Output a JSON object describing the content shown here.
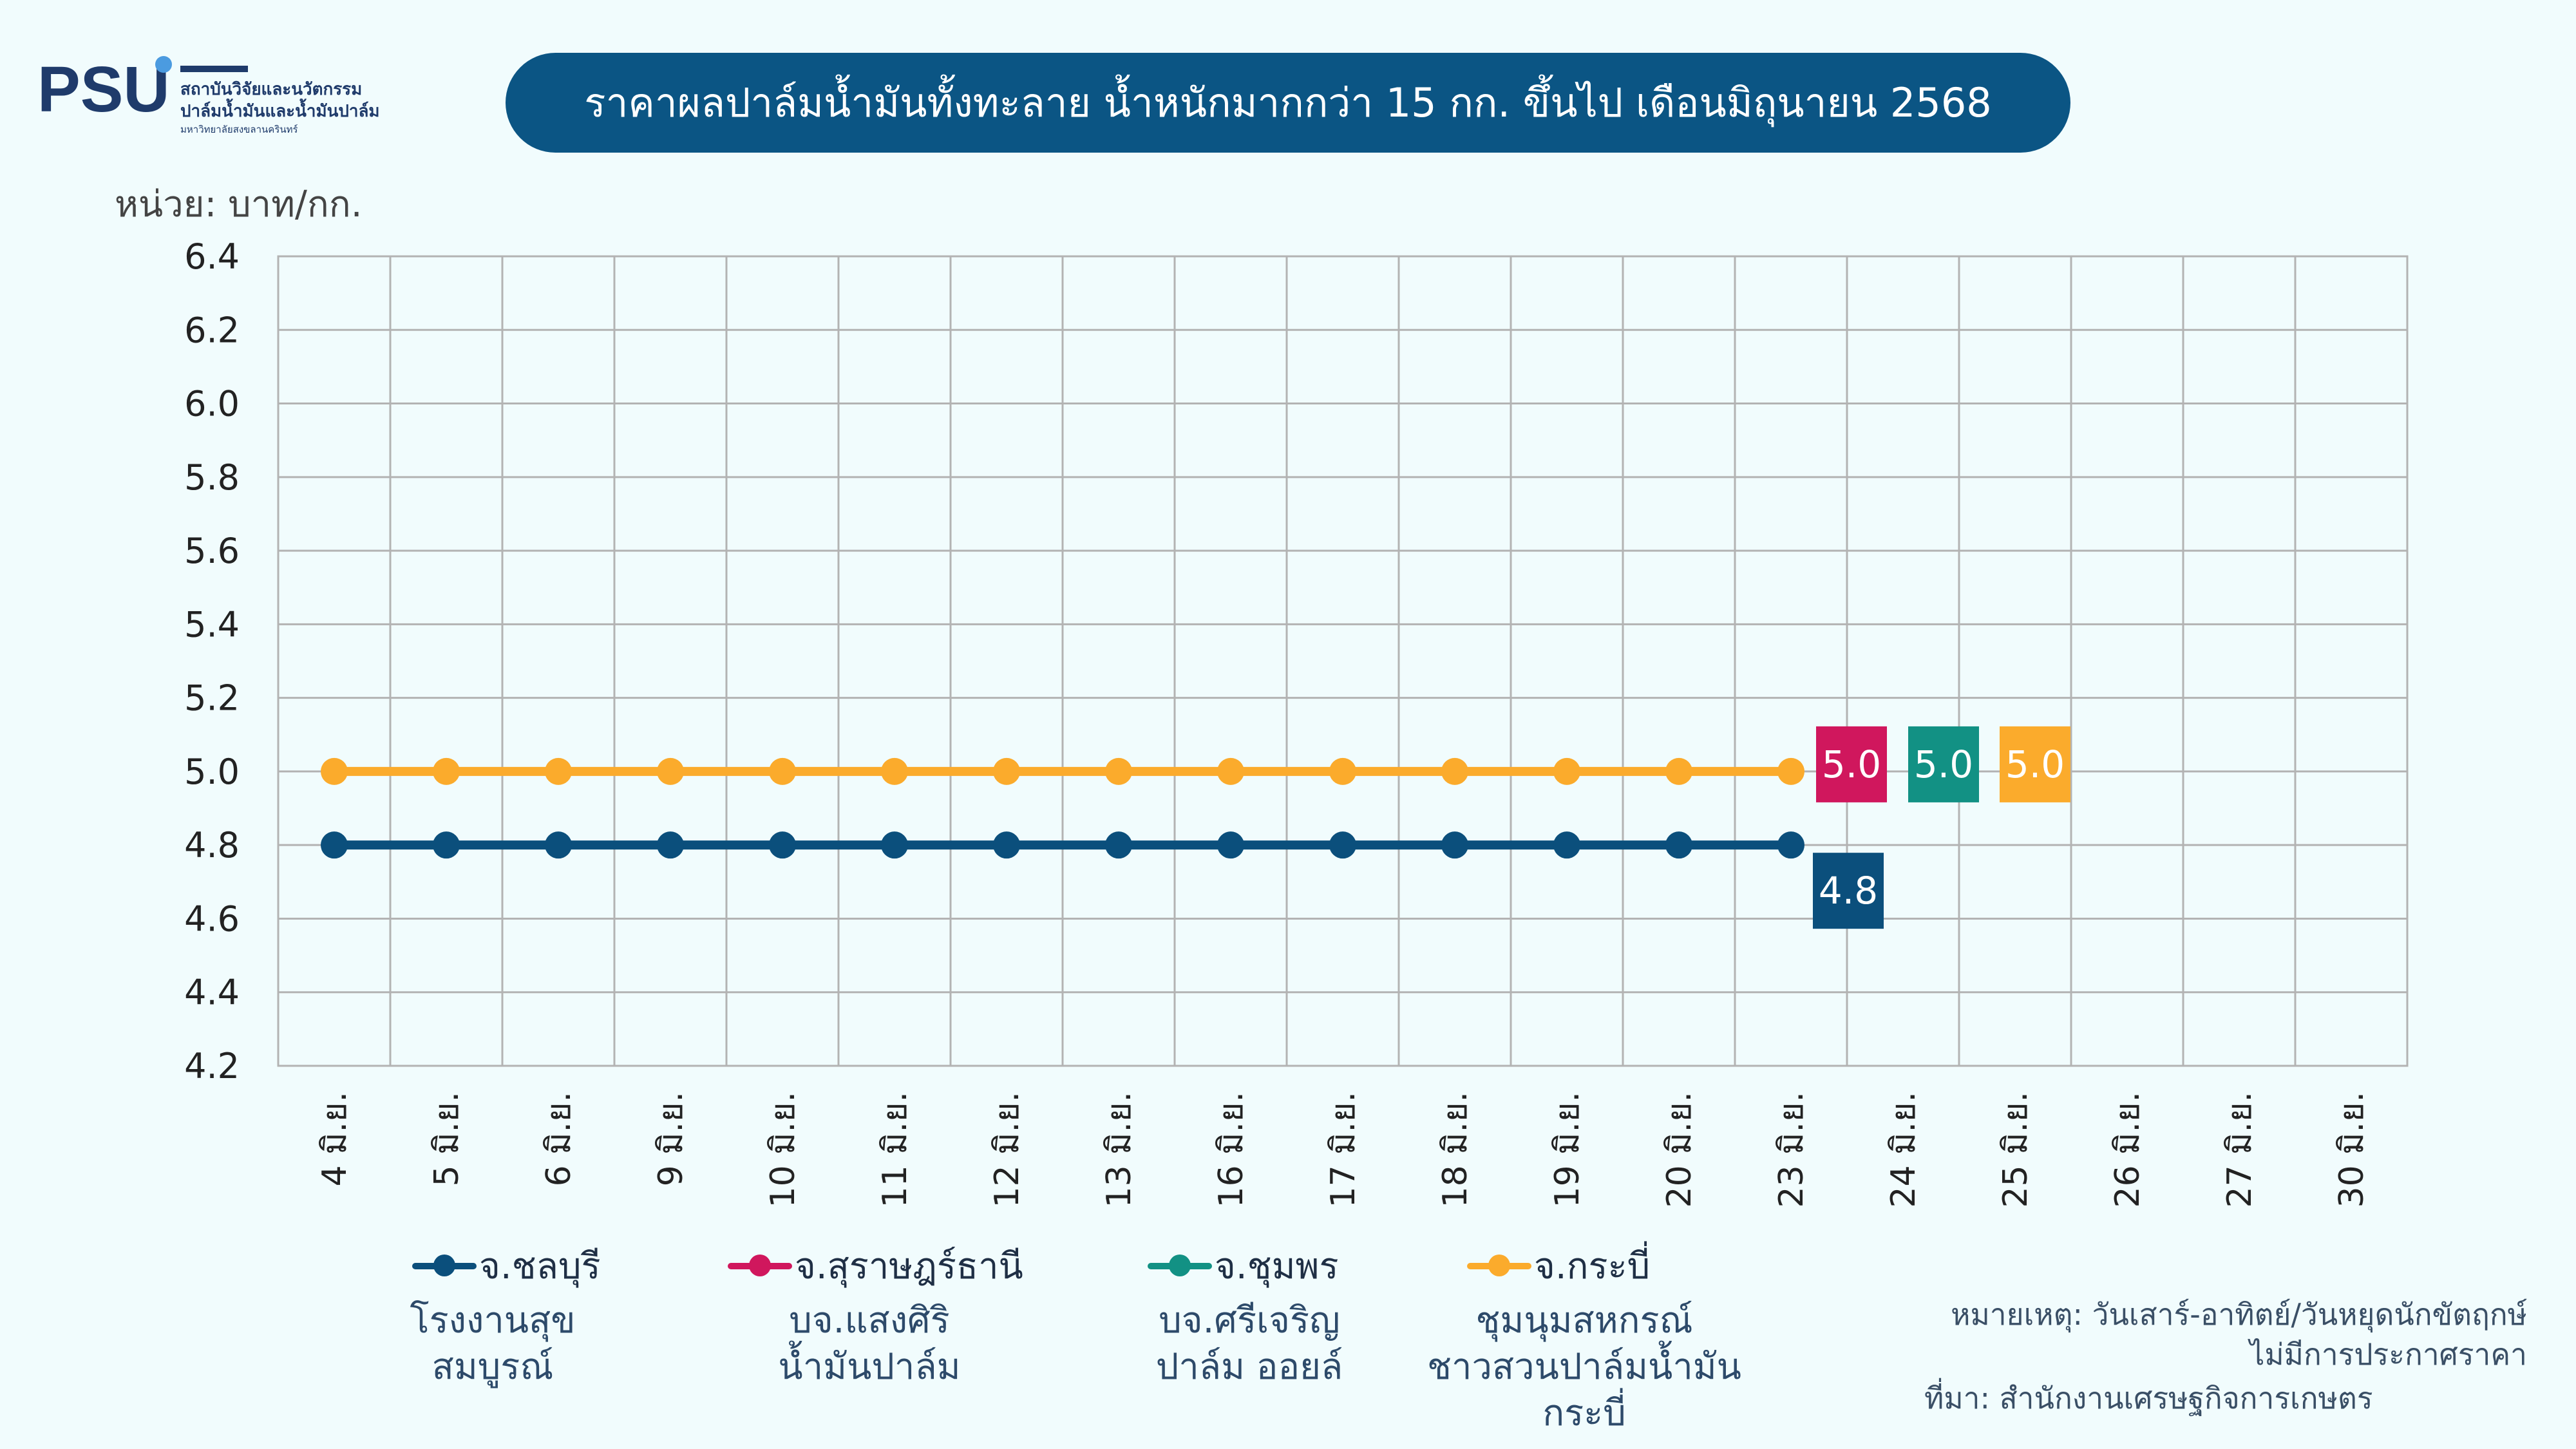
{
  "logo": {
    "mark": "PSU",
    "line1": "สถาบันวิจัยและนวัตกรรม",
    "line2": "ปาล์มน้ำมันและน้ำมันปาล์ม",
    "line3": "มหาวิทยาลัยสงขลานครินทร์"
  },
  "title": "ราคาผลปาล์มน้ำมันทั้งทะลาย น้ำหนักมากกว่า 15 กก. ขึ้นไป เดือนมิถุนายน 2568",
  "unit": "หน่วย: บาท/กก.",
  "chart_data": {
    "type": "line",
    "categories": [
      "4 มิ.ย.",
      "5 มิ.ย.",
      "6 มิ.ย.",
      "9 มิ.ย.",
      "10 มิ.ย.",
      "11 มิ.ย.",
      "12 มิ.ย.",
      "13 มิ.ย.",
      "16 มิ.ย.",
      "17 มิ.ย.",
      "18 มิ.ย.",
      "19 มิ.ย.",
      "20 มิ.ย.",
      "23 มิ.ย.",
      "24 มิ.ย.",
      "25 มิ.ย.",
      "26 มิ.ย.",
      "27 มิ.ย.",
      "30 มิ.ย."
    ],
    "ylim": [
      4.2,
      6.4
    ],
    "yticks": [
      "4.2",
      "4.4",
      "4.6",
      "4.8",
      "5.0",
      "5.2",
      "5.4",
      "5.6",
      "5.8",
      "6.0",
      "6.2",
      "6.4"
    ],
    "grid": true,
    "series": [
      {
        "name": "จ.ชลบุรี",
        "sub": "โรงงานสุข\nสมบูรณ์",
        "color": "#0b4f7c",
        "values": [
          4.8,
          4.8,
          4.8,
          4.8,
          4.8,
          4.8,
          4.8,
          4.8,
          4.8,
          4.8,
          4.8,
          4.8,
          4.8,
          4.8,
          null,
          null,
          null,
          null,
          null
        ]
      },
      {
        "name": "จ.สุราษฎร์ธานี",
        "sub": "บจ.แสงศิริ\nน้ำมันปาล์ม",
        "color": "#d0175d",
        "values": [
          null,
          null,
          null,
          null,
          null,
          null,
          null,
          null,
          null,
          null,
          null,
          null,
          null,
          null,
          null,
          null,
          null,
          null,
          null
        ]
      },
      {
        "name": "จ.ชุมพร",
        "sub": "บจ.ศรีเจริญ\nปาล์ม ออยล์",
        "color": "#129184",
        "values": [
          null,
          null,
          null,
          null,
          null,
          null,
          null,
          null,
          null,
          null,
          null,
          null,
          null,
          null,
          null,
          null,
          null,
          null,
          null
        ]
      },
      {
        "name": "จ.กระบี่",
        "sub": "ชุมนุมสหกรณ์\nชาวสวนปาล์มน้ำมัน\nกระบี่",
        "color": "#fbab2c",
        "values": [
          5.0,
          5.0,
          5.0,
          5.0,
          5.0,
          5.0,
          5.0,
          5.0,
          5.0,
          5.0,
          5.0,
          5.0,
          5.0,
          5.0,
          null,
          null,
          null,
          null,
          null
        ]
      }
    ],
    "value_labels": [
      {
        "series": "จ.สุราษฎร์ธานี",
        "text": "5.0",
        "value": 5.0
      },
      {
        "series": "จ.ชุมพร",
        "text": "5.0",
        "value": 5.0
      },
      {
        "series": "จ.กระบี่",
        "text": "5.0",
        "value": 5.0
      },
      {
        "series": "จ.ชลบุรี",
        "text": "4.8",
        "value": 4.8
      }
    ]
  },
  "note_line1": "หมายเหตุ: วันเสาร์-อาทิตย์/วันหยุดนักขัตฤกษ์",
  "note_line2": "ไม่มีการประกาศราคา",
  "source": "ที่มา: สำนักงานเศรษฐกิจการเกษตร"
}
